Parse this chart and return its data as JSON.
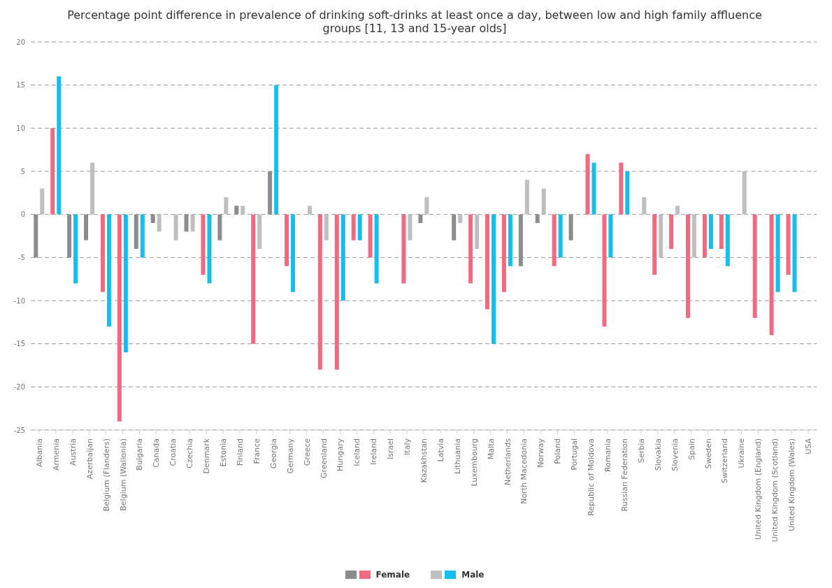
{
  "chart_data": {
    "type": "bar",
    "title": "Percentage point difference in prevalence of drinking soft-drinks at least once a day, between low and high family affluence groups [11, 13 and 15-year olds]",
    "categories": [
      "Albania",
      "Armenia",
      "Austria",
      "Azerbaijan",
      "Belgium (Flanders)",
      "Belgium (Wallonia)",
      "Bulgaria",
      "Canada",
      "Croatia",
      "Czechia",
      "Denmark",
      "Estonia",
      "Finland",
      "France",
      "Georgia",
      "Germany",
      "Greece",
      "Greenland",
      "Hungary",
      "Iceland",
      "Ireland",
      "Israel",
      "Italy",
      "Kazakhstan",
      "Latvia",
      "Lithuania",
      "Luxembourg",
      "Malta",
      "Netherlands",
      "North Macedonia",
      "Norway",
      "Poland",
      "Portugal",
      "Republic of Moldova",
      "Romania",
      "Russian Federation",
      "Serbia",
      "Slovakia",
      "Slovenia",
      "Spain",
      "Sweden",
      "Switzerland",
      "Ukraine",
      "United Kingdom (England)",
      "United Kingdom (Scotland)",
      "United Kingdom (Wales)",
      "USA"
    ],
    "series": [
      {
        "name": "Female",
        "color": "#f06b82",
        "values": [
          -5,
          10,
          -5,
          -3,
          -9,
          -24,
          -4,
          -1,
          0,
          -2,
          -7,
          -3,
          1,
          -15,
          5,
          -6,
          0,
          -18,
          -18,
          -3,
          -5,
          null,
          -8,
          -1,
          0,
          -3,
          -8,
          -11,
          -9,
          -6,
          -1,
          -6,
          -3,
          7,
          -13,
          6,
          0,
          -7,
          -4,
          -12,
          -5,
          -4,
          0,
          -12,
          -14,
          -7,
          null
        ],
        "colors": [
          "#8c8c8c",
          "#f06b82",
          "#8c8c8c",
          "#8c8c8c",
          "#f06b82",
          "#f06b82",
          "#8c8c8c",
          "#8c8c8c",
          "#8c8c8c",
          "#8c8c8c",
          "#f06b82",
          "#8c8c8c",
          "#8c8c8c",
          "#f06b82",
          "#8c8c8c",
          "#f06b82",
          "#8c8c8c",
          "#f06b82",
          "#f06b82",
          "#f06b82",
          "#f06b82",
          "#8c8c8c",
          "#f06b82",
          "#8c8c8c",
          "#8c8c8c",
          "#8c8c8c",
          "#f06b82",
          "#f06b82",
          "#f06b82",
          "#8c8c8c",
          "#8c8c8c",
          "#f06b82",
          "#8c8c8c",
          "#f06b82",
          "#f06b82",
          "#f06b82",
          "#8c8c8c",
          "#f06b82",
          "#f06b82",
          "#f06b82",
          "#f06b82",
          "#f06b82",
          "#8c8c8c",
          "#f06b82",
          "#f06b82",
          "#f06b82",
          "#8c8c8c"
        ]
      },
      {
        "name": "Male",
        "color": "#14bfec",
        "values": [
          3,
          16,
          -8,
          6,
          -13,
          -16,
          -5,
          -2,
          -3,
          -2,
          -8,
          2,
          1,
          -4,
          15,
          -9,
          1,
          -3,
          -10,
          -3,
          -8,
          null,
          -3,
          2,
          0,
          -1,
          -4,
          -15,
          -6,
          4,
          3,
          -5,
          0,
          6,
          -5,
          5,
          2,
          -5,
          1,
          -5,
          -4,
          -6,
          5,
          0,
          -9,
          -9,
          null
        ],
        "colors": [
          "#bfbfbf",
          "#14bfec",
          "#14bfec",
          "#bfbfbf",
          "#14bfec",
          "#14bfec",
          "#14bfec",
          "#bfbfbf",
          "#bfbfbf",
          "#bfbfbf",
          "#14bfec",
          "#bfbfbf",
          "#bfbfbf",
          "#bfbfbf",
          "#14bfec",
          "#14bfec",
          "#bfbfbf",
          "#bfbfbf",
          "#14bfec",
          "#14bfec",
          "#14bfec",
          "#bfbfbf",
          "#bfbfbf",
          "#bfbfbf",
          "#bfbfbf",
          "#bfbfbf",
          "#bfbfbf",
          "#14bfec",
          "#14bfec",
          "#bfbfbf",
          "#bfbfbf",
          "#14bfec",
          "#bfbfbf",
          "#14bfec",
          "#14bfec",
          "#14bfec",
          "#bfbfbf",
          "#bfbfbf",
          "#bfbfbf",
          "#bfbfbf",
          "#14bfec",
          "#14bfec",
          "#bfbfbf",
          "#bfbfbf",
          "#14bfec",
          "#14bfec",
          "#bfbfbf"
        ]
      }
    ],
    "ylim": [
      -25,
      20
    ],
    "yticks": [
      -25,
      -20,
      -15,
      -10,
      -5,
      0,
      5,
      10,
      15,
      20
    ],
    "grid": "y",
    "legend": "bottom"
  }
}
